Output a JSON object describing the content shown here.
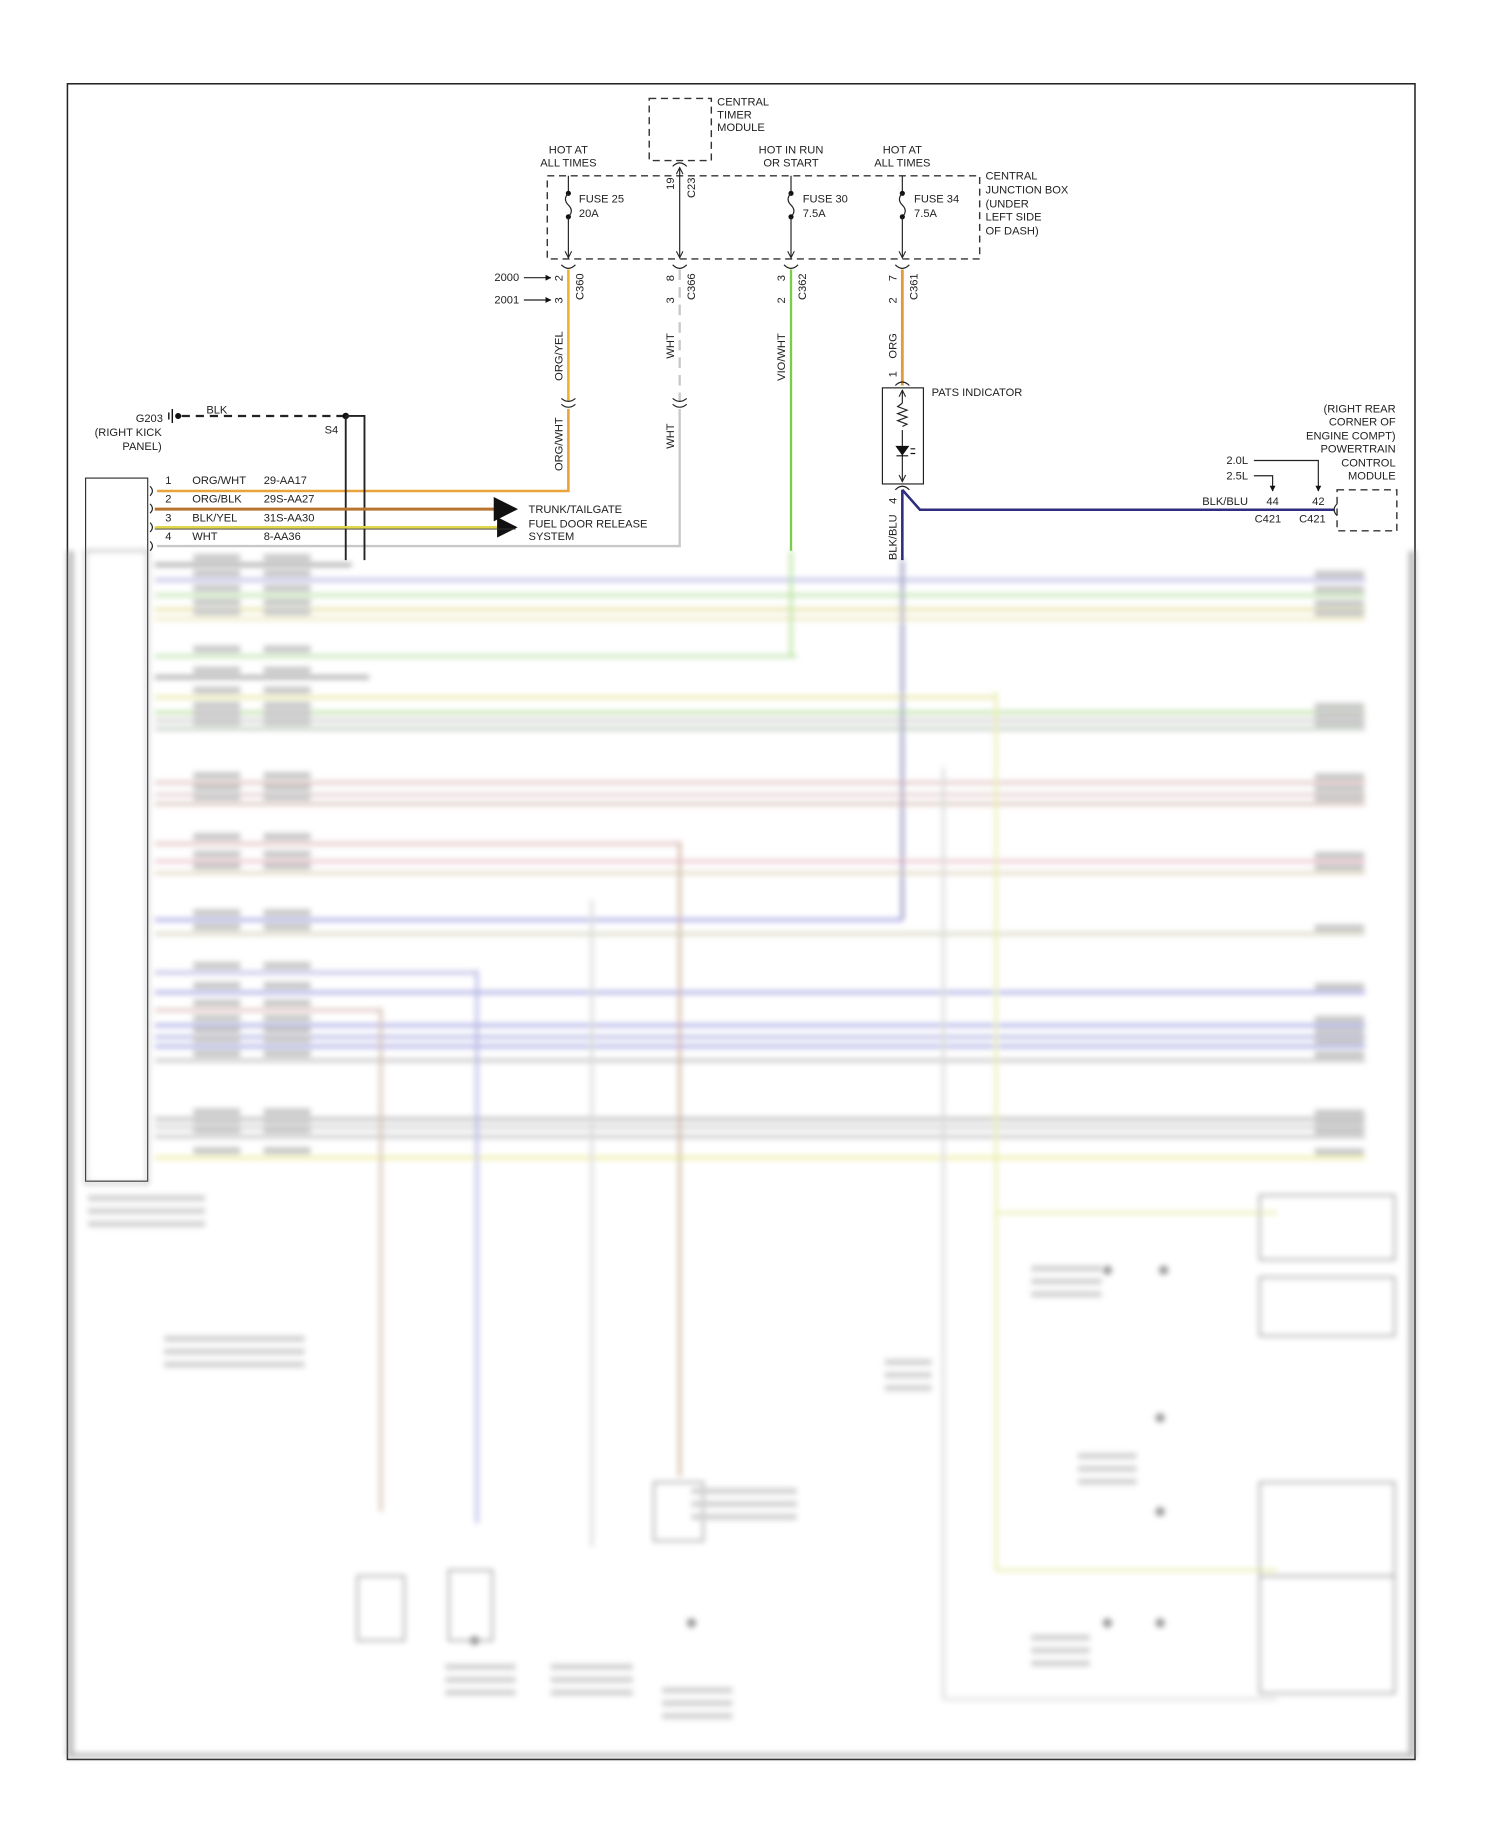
{
  "central_timer_module": {
    "label": [
      "CENTRAL",
      "TIMER",
      "MODULE"
    ]
  },
  "junction_box": {
    "label": [
      "CENTRAL",
      "JUNCTION BOX",
      "(UNDER",
      "LEFT SIDE",
      "OF DASH)"
    ]
  },
  "feeds": [
    {
      "label": [
        "HOT AT",
        "ALL TIMES"
      ]
    },
    {
      "label": [
        "HOT IN RUN",
        "OR START"
      ]
    },
    {
      "label": [
        "HOT AT",
        "ALL TIMES"
      ]
    }
  ],
  "fuses": [
    {
      "name": "FUSE 25",
      "rating": "20A"
    },
    {
      "name": "FUSE 30",
      "rating": "7.5A"
    },
    {
      "name": "FUSE 34",
      "rating": "7.5A"
    }
  ],
  "connectors": {
    "c23": {
      "id": "C23",
      "pin": "19"
    },
    "c360": {
      "id": "C360",
      "pins": [
        "2",
        "3"
      ]
    },
    "c366": {
      "id": "C366",
      "pins": [
        "8",
        "3"
      ]
    },
    "c362": {
      "id": "C362",
      "pins": [
        "3",
        "2"
      ]
    },
    "c361": {
      "id": "C361",
      "pins": [
        "7",
        "2"
      ]
    }
  },
  "years": [
    "2000",
    "2001"
  ],
  "wire_labels": {
    "org_yel": "ORG/YEL",
    "org_wht": "ORG/WHT",
    "wht_upper": "WHT",
    "wht_lower": "WHT",
    "vio_wht": "VIO/WHT",
    "org": "ORG",
    "blk_blu": "BLK/BLU",
    "blk": "BLK"
  },
  "pats": {
    "label": "PATS INDICATOR",
    "pin_top": "1",
    "pin_bottom": "4"
  },
  "ground": {
    "id": "G203",
    "location": [
      "(RIGHT KICK",
      "PANEL)"
    ],
    "splice": "S4"
  },
  "pcm": {
    "label": [
      "(RIGHT REAR",
      "CORNER OF",
      "ENGINE COMPT)",
      "POWERTRAIN",
      "CONTROL",
      "MODULE"
    ],
    "variants": [
      "2.0L",
      "2.5L"
    ],
    "wire": "BLK/BLU",
    "pins": [
      "44",
      "42"
    ],
    "connectors": [
      "C421",
      "C421"
    ]
  },
  "module_pins": [
    {
      "pin": "1",
      "color": "ORG/WHT",
      "circuit": "29-AA17"
    },
    {
      "pin": "2",
      "color": "ORG/BLK",
      "circuit": "29S-AA27"
    },
    {
      "pin": "3",
      "color": "BLK/YEL",
      "circuit": "31S-AA30"
    },
    {
      "pin": "4",
      "color": "WHT",
      "circuit": "8-AA36"
    }
  ],
  "destination": [
    "TRUNK/TAILGATE",
    "FUEL DOOR RELEASE",
    "SYSTEM"
  ],
  "wire_colors": {
    "orange": "#e8a33a",
    "org_yel": "#f0b030",
    "org_blk": "#b8742e",
    "yellow": "#e0d84a",
    "white": "#c8c8c8",
    "green": "#7ccc4a",
    "blue": "#2e2e80",
    "black": "#222222"
  }
}
